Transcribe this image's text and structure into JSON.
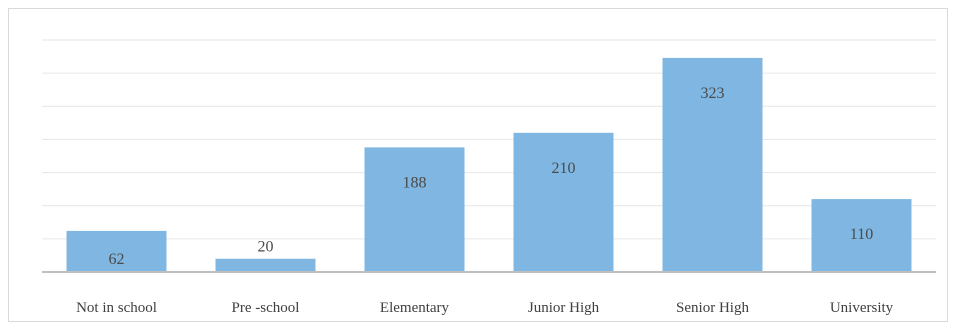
{
  "chart_data": {
    "type": "bar",
    "title": "",
    "xlabel": "",
    "ylabel": "",
    "categories": [
      "Not in school",
      "Pre -school",
      "Elementary",
      "Junior High",
      "Senior High",
      "University"
    ],
    "values": [
      62,
      20,
      188,
      210,
      323,
      110
    ],
    "ylim": [
      0,
      350
    ],
    "grid": true,
    "legend": "none",
    "data_labels": true,
    "bar_color": "#7fb7e2"
  }
}
